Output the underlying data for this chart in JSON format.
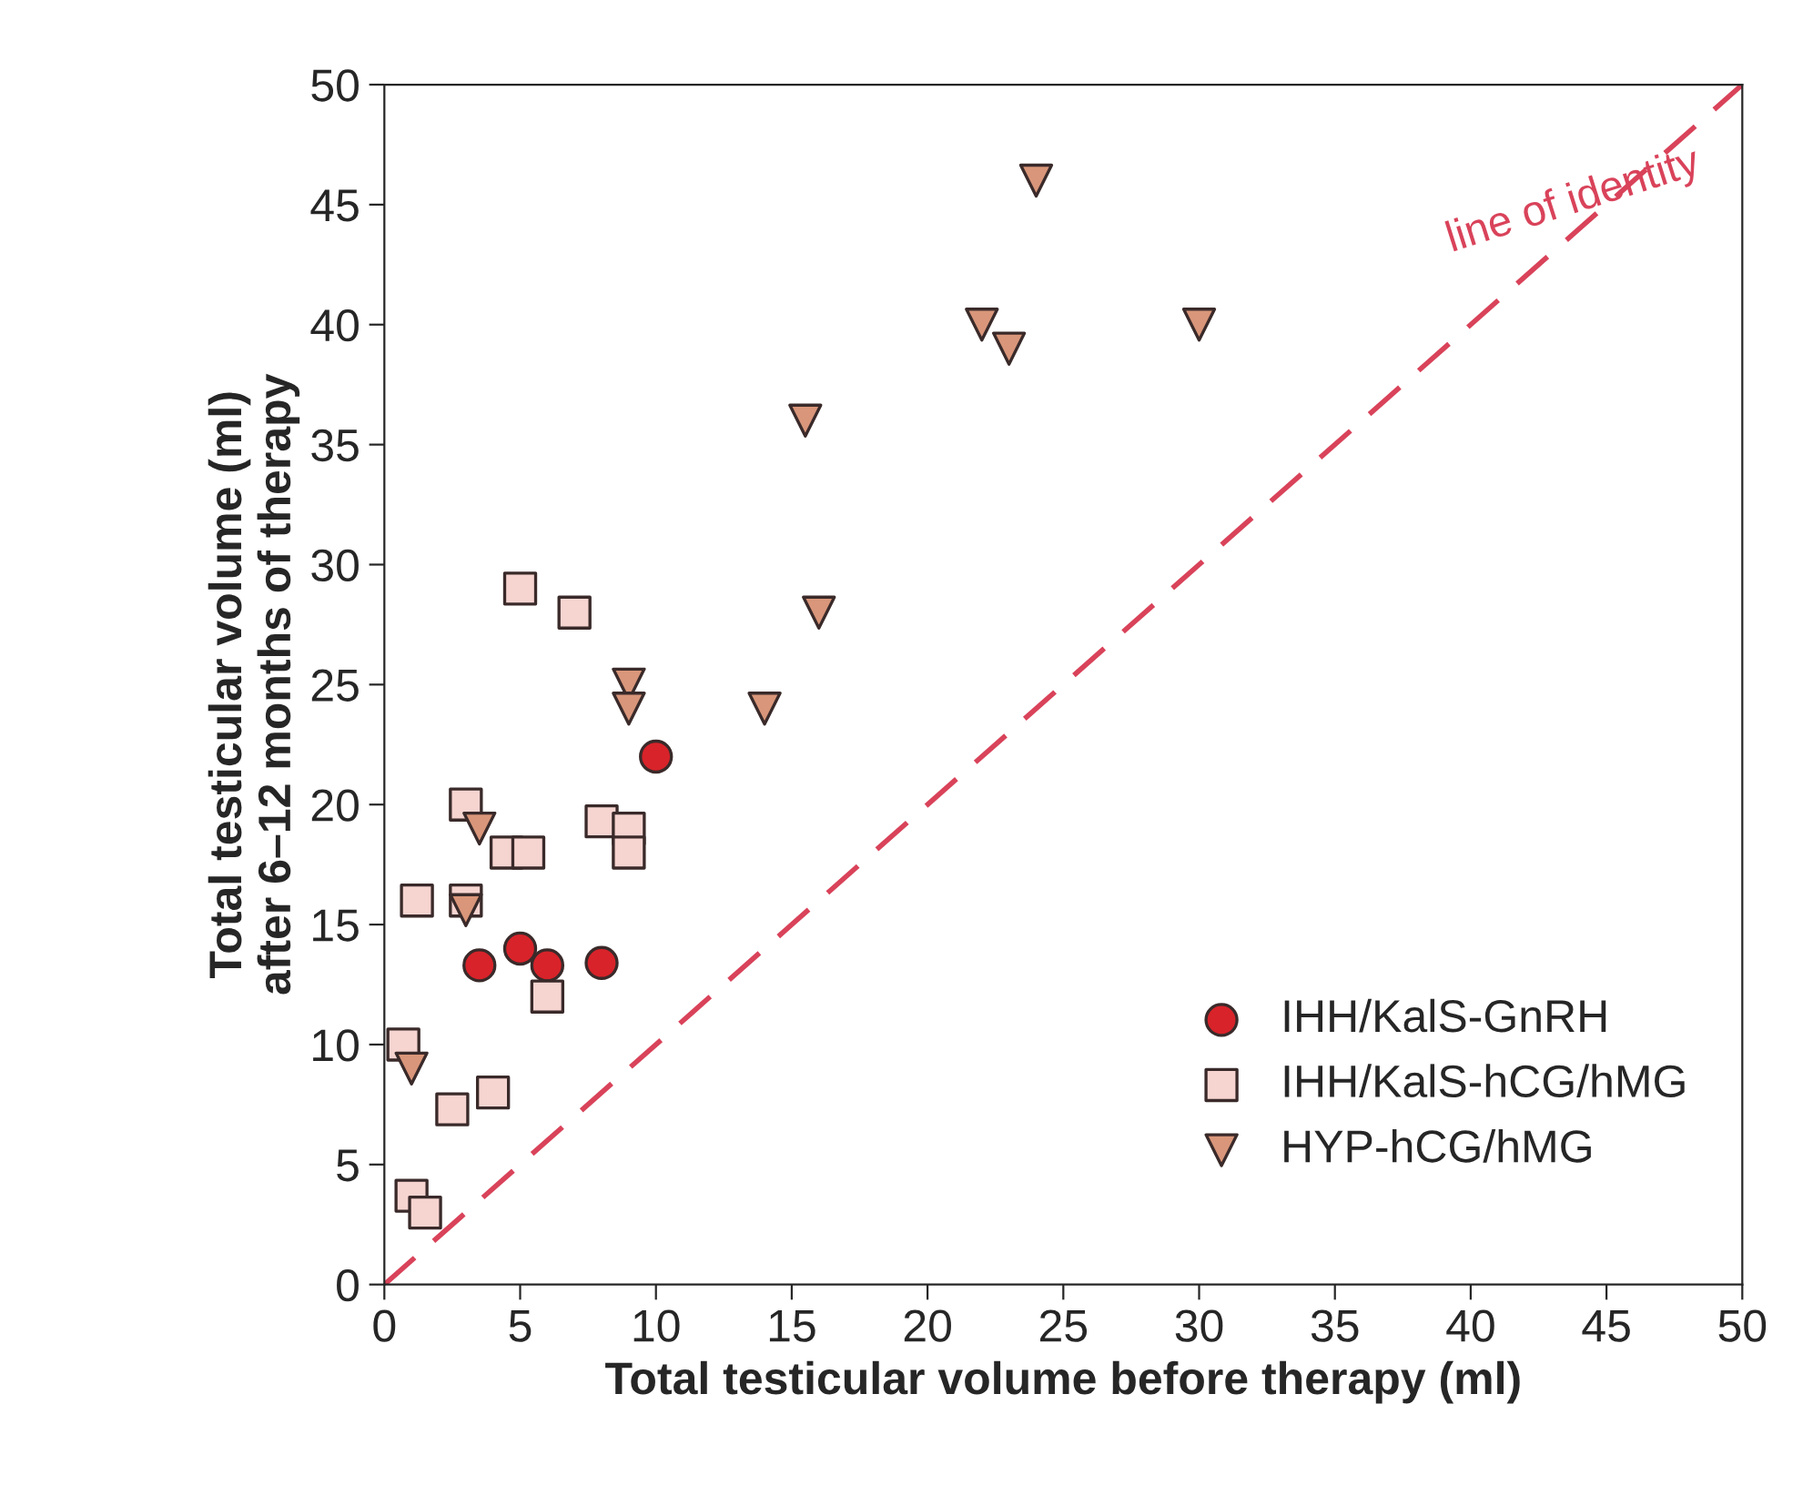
{
  "chart_data": {
    "type": "scatter",
    "xlabel": "Total testicular volume before therapy (ml)",
    "ylabel": "Total testicular volume (ml)\nafter 6–12 months of therapy",
    "xlim": [
      0,
      50
    ],
    "ylim": [
      0,
      50
    ],
    "xticks": [
      0,
      5,
      10,
      15,
      20,
      25,
      30,
      35,
      40,
      45,
      50
    ],
    "yticks": [
      0,
      5,
      10,
      15,
      20,
      25,
      30,
      35,
      40,
      45,
      50
    ],
    "grid": false,
    "legend": "bottom right",
    "series": [
      {
        "name": "IHH/KalS-GnRH",
        "color": "#d8232a",
        "marker": "circle",
        "x": [
          3.5,
          5,
          6,
          8,
          10
        ],
        "values": [
          13.3,
          14,
          13.3,
          13.4,
          22
        ]
      },
      {
        "name": "IHH/KalS-hCG/hMG",
        "color": "#f6d4d0",
        "marker": "square",
        "x": [
          5,
          7,
          3,
          4.5,
          5.3,
          8,
          9,
          9,
          1.2,
          3,
          6,
          0.7,
          2.5,
          4,
          1,
          1.5
        ],
        "values": [
          29,
          28,
          20,
          18,
          18,
          19.3,
          19,
          18,
          16,
          16,
          12,
          10,
          7.3,
          8,
          3.7,
          3
        ]
      },
      {
        "name": "HYP-hCG/hMG",
        "color": "#d9967a",
        "marker": "triangle",
        "x": [
          24,
          22,
          23,
          30,
          15.5,
          16,
          14,
          9,
          9,
          3.5,
          3,
          1
        ],
        "values": [
          46,
          40,
          39,
          40,
          36,
          28,
          24,
          25,
          24,
          19,
          15.6,
          9
        ]
      },
      {
        "name": "line of identity",
        "type": "line",
        "color": "#d9435a",
        "line_style": "dashed",
        "marker": "none",
        "x": [
          0,
          50
        ],
        "values": [
          0,
          50
        ]
      }
    ]
  }
}
